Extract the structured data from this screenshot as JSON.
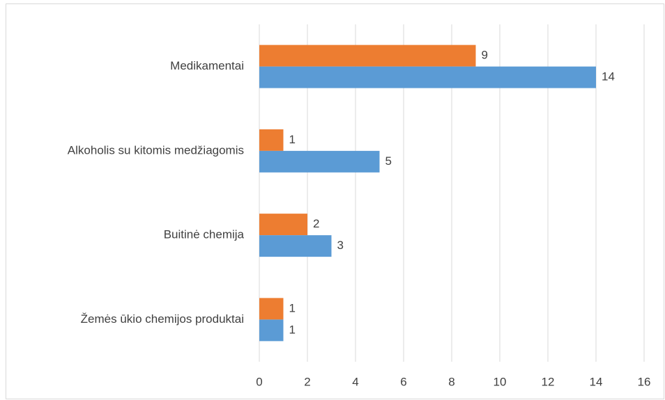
{
  "chart_data": {
    "type": "hbar",
    "categories": [
      "Medikamentai",
      "Alkoholis su kitomis medžiagomis",
      "Buitinė chemija",
      "Žemės ūkio chemijos produktai"
    ],
    "series": [
      {
        "color": "#ed7d31",
        "values": [
          9,
          1,
          2,
          1
        ]
      },
      {
        "color": "#5b9bd5",
        "values": [
          14,
          5,
          3,
          1
        ]
      }
    ],
    "xlim": [
      0,
      16
    ],
    "xticks": [
      0,
      2,
      4,
      6,
      8,
      10,
      12,
      14,
      16
    ],
    "grid": true
  }
}
